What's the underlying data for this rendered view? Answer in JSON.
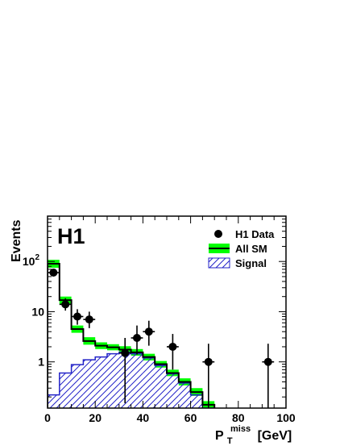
{
  "chart_data": {
    "type": "histogram",
    "experiment_label": "H1",
    "xlabel": {
      "main": "P",
      "sub": "T",
      "sup": "miss",
      "unit": "[GeV]"
    },
    "ylabel": "Events",
    "xlim": [
      0,
      100
    ],
    "ylim": [
      0.12,
      800
    ],
    "yscale": "log",
    "x_ticks": [
      0,
      20,
      40,
      60,
      80,
      100
    ],
    "y_ticks": [
      {
        "value": 1,
        "base": "1",
        "exp": ""
      },
      {
        "value": 10,
        "base": "10",
        "exp": ""
      },
      {
        "value": 100,
        "base": "10",
        "exp": "2"
      }
    ],
    "bins": [
      0,
      5,
      10,
      15,
      20,
      25,
      30,
      35,
      40,
      45,
      50,
      55,
      60,
      65,
      70
    ],
    "all_sm": [
      90,
      17,
      4.5,
      2.6,
      2.1,
      1.95,
      1.75,
      1.55,
      1.25,
      0.9,
      0.6,
      0.4,
      0.25,
      0.14
    ],
    "all_sm_band": [
      [
        75,
        108
      ],
      [
        14,
        20
      ],
      [
        3.8,
        5.3
      ],
      [
        2.2,
        3.1
      ],
      [
        1.8,
        2.45
      ],
      [
        1.7,
        2.25
      ],
      [
        1.5,
        2.05
      ],
      [
        1.33,
        1.8
      ],
      [
        1.07,
        1.45
      ],
      [
        0.77,
        1.04
      ],
      [
        0.52,
        0.7
      ],
      [
        0.34,
        0.47
      ],
      [
        0.21,
        0.3
      ],
      [
        0.12,
        0.165
      ]
    ],
    "signal": [
      0.22,
      0.6,
      0.88,
      1.1,
      1.25,
      1.45,
      1.55,
      1.45,
      1.2,
      0.85,
      0.58,
      0.38,
      0.22,
      0.12
    ],
    "data": [
      {
        "x": 2.5,
        "y": 60,
        "yerr": [
          8,
          8
        ]
      },
      {
        "x": 7.5,
        "y": 14,
        "yerr": [
          3.5,
          4.5
        ]
      },
      {
        "x": 12.5,
        "y": 8,
        "yerr": [
          2.5,
          3.2
        ]
      },
      {
        "x": 17.5,
        "y": 7,
        "yerr": [
          2.3,
          3
        ]
      },
      {
        "x": 32.5,
        "y": 1.5,
        "yerr": [
          1.35,
          1.5
        ]
      },
      {
        "x": 37.5,
        "y": 3,
        "yerr": [
          1.6,
          2.3
        ]
      },
      {
        "x": 42.5,
        "y": 4,
        "yerr": [
          1.9,
          2.6
        ]
      },
      {
        "x": 52.5,
        "y": 2,
        "yerr": [
          1.3,
          1.6
        ]
      },
      {
        "x": 67.5,
        "y": 1,
        "yerr": [
          0.99,
          1.3
        ]
      },
      {
        "x": 92.5,
        "y": 1,
        "yerr": [
          0.99,
          1.3
        ]
      }
    ],
    "legend": {
      "placement": "top-right",
      "entries": [
        {
          "label": "H1 Data",
          "kind": "marker"
        },
        {
          "label": "All SM",
          "kind": "band"
        },
        {
          "label": "Signal",
          "kind": "hatch"
        }
      ]
    },
    "colors": {
      "sm_band": "#00ff00",
      "sm_line": "#000000",
      "signal_hatch": "#2323c8",
      "data": "#000000"
    }
  }
}
